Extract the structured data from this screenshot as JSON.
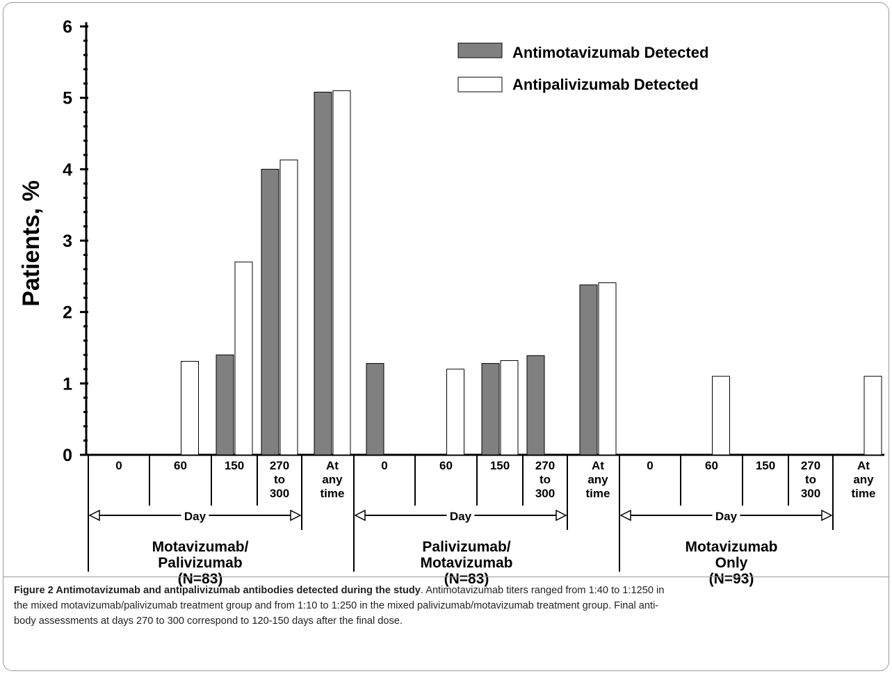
{
  "chart_data": {
    "type": "bar",
    "ylabel": "Patients, %",
    "ylim": [
      0,
      6
    ],
    "yticks": [
      0,
      1,
      2,
      3,
      4,
      5,
      6
    ],
    "legend": {
      "placement": "top-right",
      "entries": [
        {
          "name": "Antimotavizumab Detected",
          "color": "#808080"
        },
        {
          "name": "Antipalivizumab Detected",
          "color": "#ffffff"
        }
      ]
    },
    "categories": [
      "0",
      "60",
      "150",
      "270 to 300",
      "At any time",
      "0",
      "60",
      "150",
      "270 to 300",
      "At any time",
      "0",
      "60",
      "150",
      "270 to 300",
      "At any time"
    ],
    "category_label_lines": [
      [
        "0"
      ],
      [
        "60"
      ],
      [
        "150"
      ],
      [
        "270",
        "to",
        "300"
      ],
      [
        "At",
        "any",
        "time"
      ],
      [
        "0"
      ],
      [
        "60"
      ],
      [
        "150"
      ],
      [
        "270",
        "to",
        "300"
      ],
      [
        "At",
        "any",
        "time"
      ],
      [
        "0"
      ],
      [
        "60"
      ],
      [
        "150"
      ],
      [
        "270",
        "to",
        "300"
      ],
      [
        "At",
        "any",
        "time"
      ]
    ],
    "day_label": "Day",
    "groups": [
      {
        "lines": [
          "Motavizumab/",
          "Palivizumab",
          "(N=83)"
        ]
      },
      {
        "lines": [
          "Palivizumab/",
          "Motavizumab",
          "(N=83)"
        ]
      },
      {
        "lines": [
          "Motavizumab",
          "Only",
          "(N=93)"
        ]
      }
    ],
    "series": [
      {
        "name": "Antimotavizumab Detected",
        "color": "#808080",
        "values": [
          0,
          0,
          1.4,
          4.0,
          5.08,
          1.28,
          0,
          1.28,
          1.39,
          2.38,
          0,
          0,
          0,
          0,
          0
        ]
      },
      {
        "name": "Antipalivizumab Detected",
        "color": "#ffffff",
        "values": [
          0,
          1.31,
          2.7,
          4.13,
          5.1,
          0,
          1.2,
          1.32,
          0,
          2.41,
          0,
          1.1,
          0,
          0,
          1.1
        ]
      }
    ]
  },
  "caption": {
    "bold": "Figure 2 Antimotavizumab and antipalivizumab antibodies detected during the study",
    "line1": ". Antimotavizumab titers ranged from 1:40 to 1:1250 in",
    "line2": "the mixed motavizumab/palivizumab treatment group and from 1:10 to 1:250 in the mixed palivizumab/motavizumab treatment group. Final anti-",
    "line3": "body assessments at days 270 to 300 correspond to 120-150 days after the final dose."
  }
}
